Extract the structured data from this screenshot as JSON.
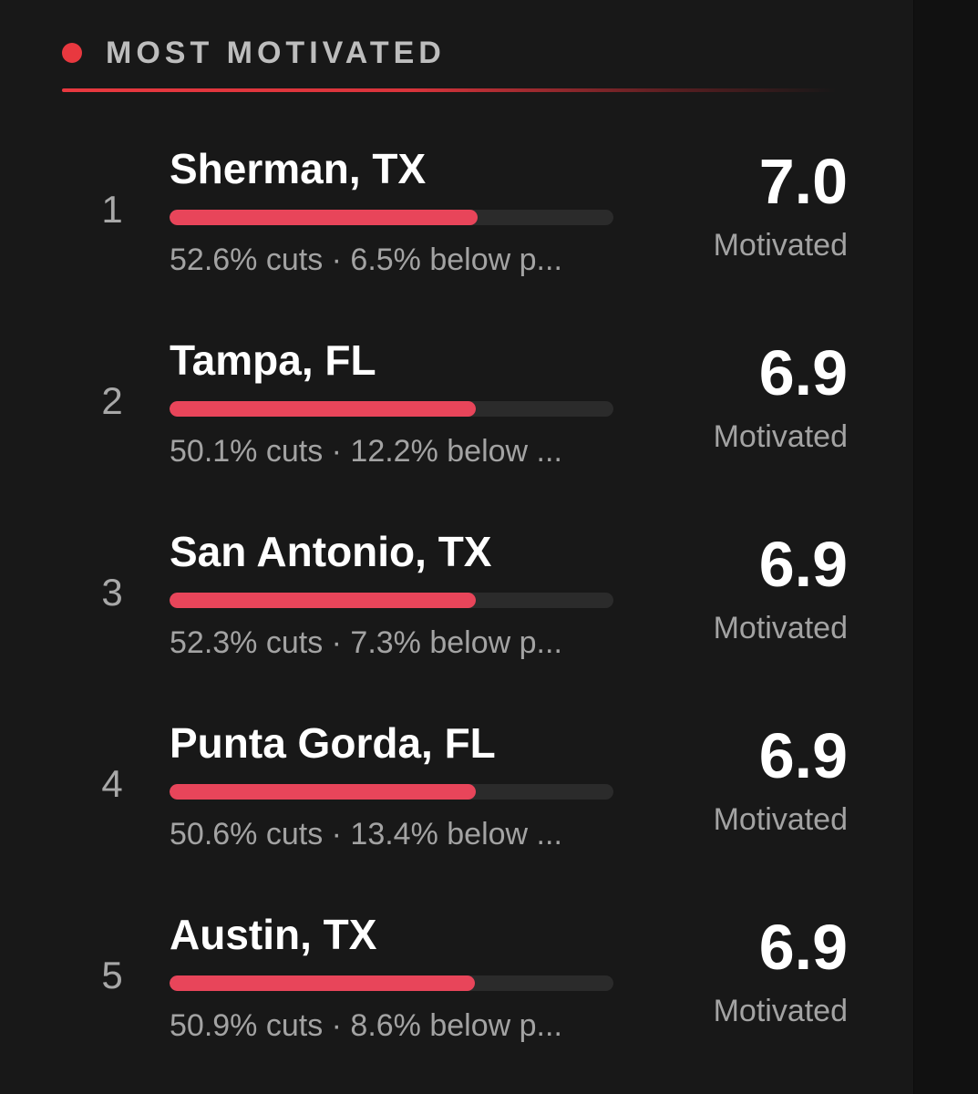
{
  "header": {
    "title": "MOST MOTIVATED",
    "accent_color": "#e8383f"
  },
  "items": [
    {
      "rank": "1",
      "name": "Sherman, TX",
      "details": "52.6% cuts · 6.5% below p...",
      "score": "7.0",
      "label": "Motivated",
      "bar_fraction": 0.695
    },
    {
      "rank": "2",
      "name": "Tampa, FL",
      "details": "50.1% cuts · 12.2% below ...",
      "score": "6.9",
      "label": "Motivated",
      "bar_fraction": 0.69
    },
    {
      "rank": "3",
      "name": "San Antonio, TX",
      "details": "52.3% cuts · 7.3% below p...",
      "score": "6.9",
      "label": "Motivated",
      "bar_fraction": 0.69
    },
    {
      "rank": "4",
      "name": "Punta Gorda, FL",
      "details": "50.6% cuts · 13.4% below ...",
      "score": "6.9",
      "label": "Motivated",
      "bar_fraction": 0.69
    },
    {
      "rank": "5",
      "name": "Austin, TX",
      "details": "50.9% cuts · 8.6% below p...",
      "score": "6.9",
      "label": "Motivated",
      "bar_fraction": 0.688
    }
  ]
}
